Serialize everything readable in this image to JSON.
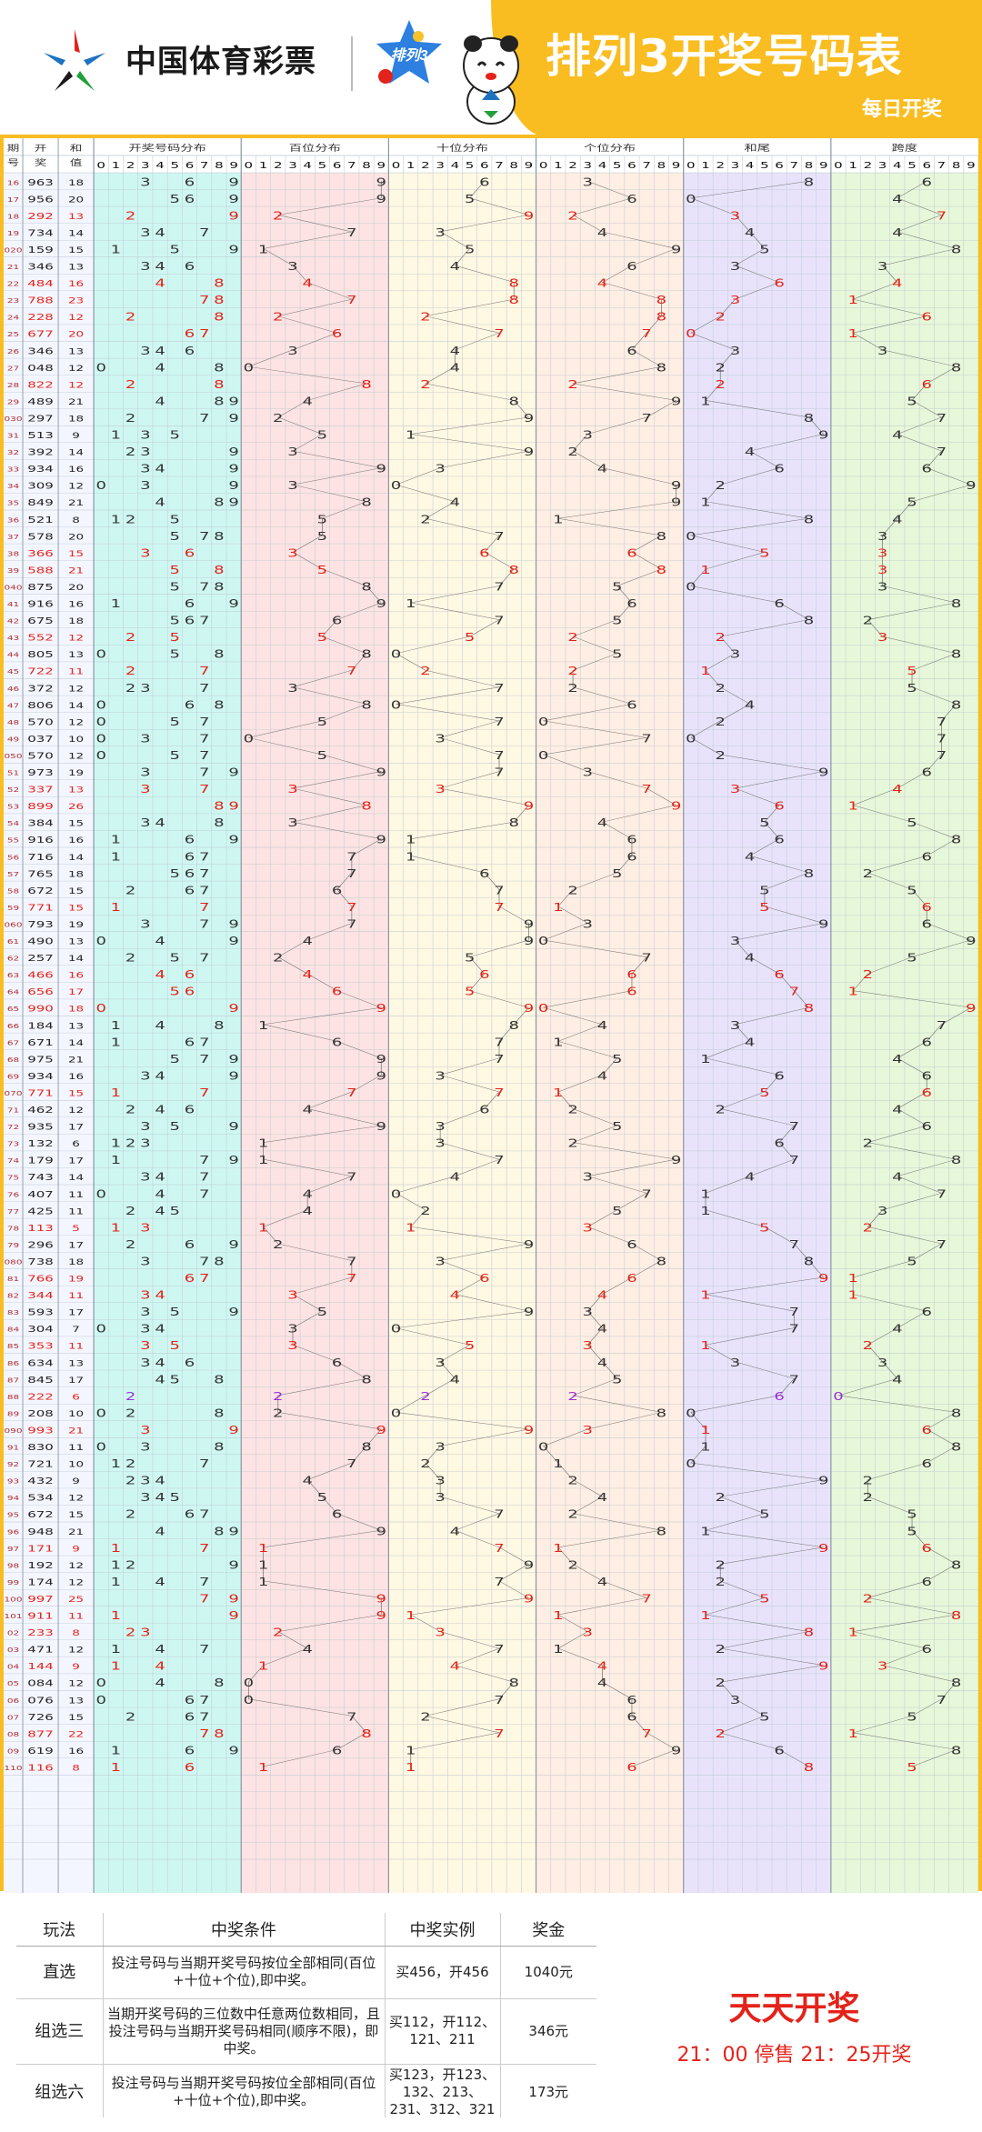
{
  "header": {
    "brand": "中国体育彩票",
    "badge": "排列3",
    "title": "排列3开奖号码表",
    "subtitle": "每日开奖"
  },
  "columns": {
    "issue": "期号",
    "draw": "开奖",
    "sum": "和值",
    "dist": "开奖号码分布",
    "hundreds": "百位分布",
    "tens": "十位分布",
    "units": "个位分布",
    "tail": "和尾",
    "span": "跨度"
  },
  "rows": [
    [
      "16",
      "963"
    ],
    [
      "17",
      "956"
    ],
    [
      "18",
      "292"
    ],
    [
      "19",
      "734"
    ],
    [
      "020",
      "159"
    ],
    [
      "21",
      "346"
    ],
    [
      "22",
      "484"
    ],
    [
      "23",
      "788"
    ],
    [
      "24",
      "228"
    ],
    [
      "25",
      "677"
    ],
    [
      "26",
      "346"
    ],
    [
      "27",
      "048"
    ],
    [
      "28",
      "822"
    ],
    [
      "29",
      "489"
    ],
    [
      "030",
      "297"
    ],
    [
      "31",
      "513"
    ],
    [
      "32",
      "392"
    ],
    [
      "33",
      "934"
    ],
    [
      "34",
      "309"
    ],
    [
      "35",
      "849"
    ],
    [
      "36",
      "521"
    ],
    [
      "37",
      "578"
    ],
    [
      "38",
      "366"
    ],
    [
      "39",
      "588"
    ],
    [
      "040",
      "875"
    ],
    [
      "41",
      "916"
    ],
    [
      "42",
      "675"
    ],
    [
      "43",
      "552"
    ],
    [
      "44",
      "805"
    ],
    [
      "45",
      "722"
    ],
    [
      "46",
      "372"
    ],
    [
      "47",
      "806"
    ],
    [
      "48",
      "570"
    ],
    [
      "49",
      "037"
    ],
    [
      "050",
      "570"
    ],
    [
      "51",
      "973"
    ],
    [
      "52",
      "337"
    ],
    [
      "53",
      "899"
    ],
    [
      "54",
      "384"
    ],
    [
      "55",
      "916"
    ],
    [
      "56",
      "716"
    ],
    [
      "57",
      "765"
    ],
    [
      "58",
      "672"
    ],
    [
      "59",
      "771"
    ],
    [
      "060",
      "793"
    ],
    [
      "61",
      "490"
    ],
    [
      "62",
      "257"
    ],
    [
      "63",
      "466"
    ],
    [
      "64",
      "656"
    ],
    [
      "65",
      "990"
    ],
    [
      "66",
      "184"
    ],
    [
      "67",
      "671"
    ],
    [
      "68",
      "975"
    ],
    [
      "69",
      "934"
    ],
    [
      "070",
      "771"
    ],
    [
      "71",
      "462"
    ],
    [
      "72",
      "935"
    ],
    [
      "73",
      "132"
    ],
    [
      "74",
      "179"
    ],
    [
      "75",
      "743"
    ],
    [
      "76",
      "407"
    ],
    [
      "77",
      "425"
    ],
    [
      "78",
      "113"
    ],
    [
      "79",
      "296"
    ],
    [
      "080",
      "738"
    ],
    [
      "81",
      "766"
    ],
    [
      "82",
      "344"
    ],
    [
      "83",
      "593"
    ],
    [
      "84",
      "304"
    ],
    [
      "85",
      "353"
    ],
    [
      "86",
      "634"
    ],
    [
      "87",
      "845"
    ],
    [
      "88",
      "222"
    ],
    [
      "89",
      "208"
    ],
    [
      "090",
      "993"
    ],
    [
      "91",
      "830"
    ],
    [
      "92",
      "721"
    ],
    [
      "93",
      "432"
    ],
    [
      "94",
      "534"
    ],
    [
      "95",
      "672"
    ],
    [
      "96",
      "948"
    ],
    [
      "97",
      "171"
    ],
    [
      "98",
      "192"
    ],
    [
      "99",
      "174"
    ],
    [
      "100",
      "997"
    ],
    [
      "101",
      "911"
    ],
    [
      "02",
      "233"
    ],
    [
      "03",
      "471"
    ],
    [
      "04",
      "144"
    ],
    [
      "05",
      "084"
    ],
    [
      "06",
      "076"
    ],
    [
      "07",
      "726"
    ],
    [
      "08",
      "877"
    ],
    [
      "09",
      "619"
    ],
    [
      "110",
      "116"
    ]
  ],
  "legend": {
    "headers": [
      "玩法",
      "中奖条件",
      "中奖实例",
      "奖金"
    ],
    "rows": [
      {
        "play": "直选",
        "cond": "投注号码与当期开奖号码按位全部相同(百位+十位+个位),即中奖。",
        "ex": "买456，开456",
        "prize": "1040元"
      },
      {
        "play": "组选三",
        "cond": "当期开奖号码的三位数中任意两位数相同，且投注号码与当期开奖号码相同(顺序不限)，即中奖。",
        "ex": "买112，开112、121、211",
        "prize": "346元"
      },
      {
        "play": "组选六",
        "cond": "投注号码与当期开奖号码按位全部相同(百位+十位+个位),即中奖。",
        "ex": "买123，开123、132、213、231、312、321",
        "prize": "173元"
      }
    ]
  },
  "daily": {
    "title": "天天开奖",
    "time": "21：00 停售 21：25开奖"
  },
  "colors": {
    "frame": "#f9bd21",
    "red": "#e3231a",
    "purple": "#9b30d9",
    "dist_bg": "#cff7f2",
    "hundreds_bg": "#fde3e3",
    "tens_bg": "#fff8e3",
    "units_bg": "#ffeee3",
    "tail_bg": "#e8e3fb",
    "span_bg": "#e7f7d9"
  }
}
